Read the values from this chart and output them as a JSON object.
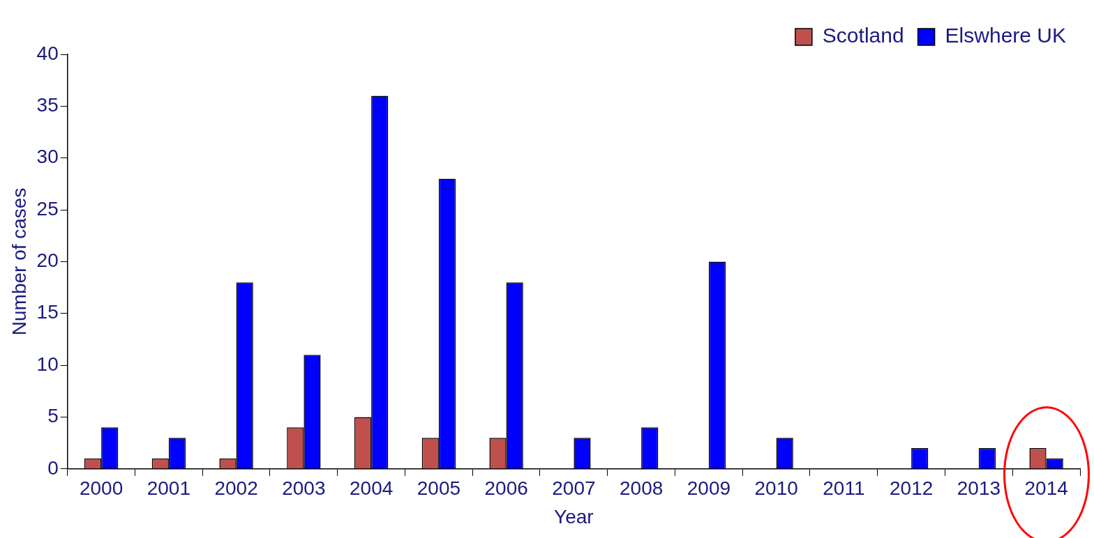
{
  "chart_data": {
    "type": "bar",
    "xlabel": "Year",
    "ylabel": "Number of cases",
    "categories": [
      "2000",
      "2001",
      "2002",
      "2003",
      "2004",
      "2005",
      "2006",
      "2007",
      "2008",
      "2009",
      "2010",
      "2011",
      "2012",
      "2013",
      "2014"
    ],
    "series": [
      {
        "name": "Scotland",
        "color": "#c0504d",
        "values": [
          1,
          1,
          1,
          4,
          5,
          3,
          3,
          0,
          0,
          0,
          0,
          0,
          0,
          0,
          2
        ]
      },
      {
        "name": "Elswhere UK",
        "color": "#0000ff",
        "values": [
          4,
          3,
          18,
          11,
          36,
          28,
          18,
          3,
          4,
          20,
          3,
          0,
          2,
          2,
          1
        ]
      }
    ],
    "ylim": [
      0,
      40
    ],
    "yticks": [
      0,
      5,
      10,
      15,
      20,
      25,
      30,
      35,
      40
    ],
    "grid": false,
    "legend": "top right"
  }
}
